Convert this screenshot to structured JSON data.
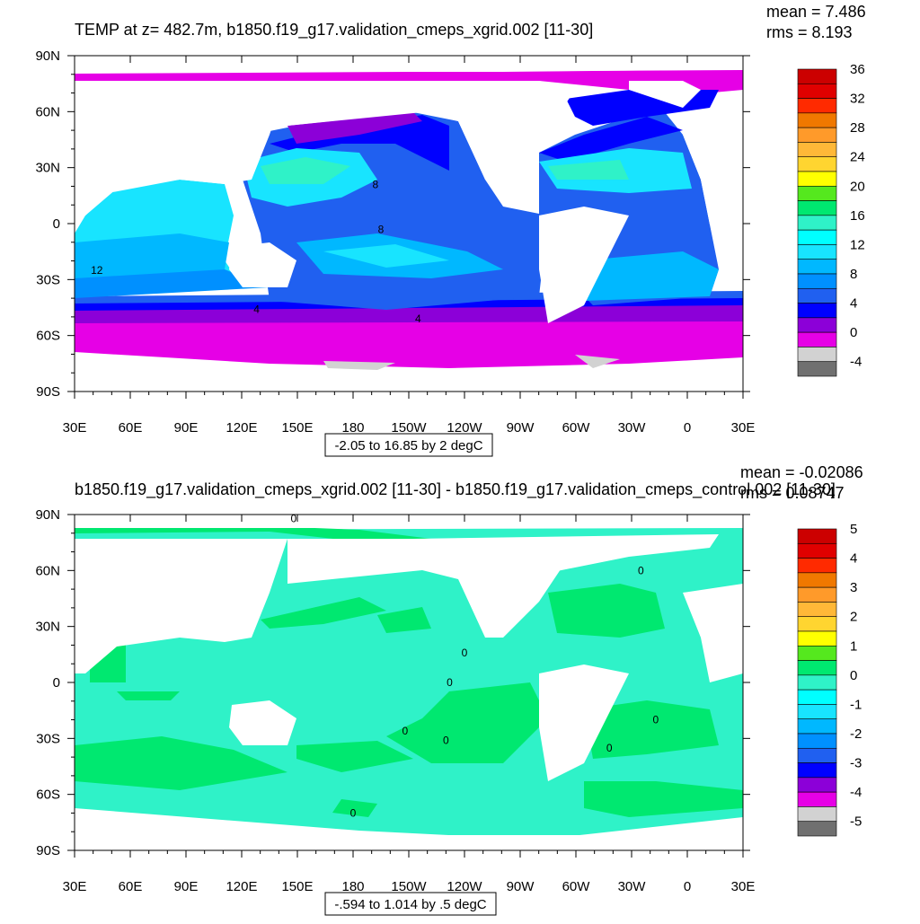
{
  "chart_data": [
    {
      "type": "heatmap",
      "title": "TEMP at z= 482.7m, b1850.f19_g17.validation_cmeps_xgrid.002 [11-30]",
      "stats": {
        "mean": "mean = 7.486",
        "rms": "rms = 8.193"
      },
      "x_ticks": [
        "30E",
        "60E",
        "90E",
        "120E",
        "150E",
        "180",
        "150W",
        "120W",
        "90W",
        "60W",
        "30W",
        "0",
        "30E"
      ],
      "y_ticks": [
        "90N",
        "60N",
        "30N",
        "0",
        "30S",
        "60S",
        "90S"
      ],
      "xlim_lon": [
        30,
        390
      ],
      "ylim_lat": [
        -90,
        90
      ],
      "colorbar": {
        "labels": [
          "36",
          "32",
          "28",
          "24",
          "20",
          "16",
          "12",
          "8",
          "4",
          "0",
          "-4"
        ],
        "colors": [
          "#cc0000",
          "#e00000",
          "#ff2a00",
          "#f07800",
          "#ff9a2a",
          "#ffb838",
          "#ffd530",
          "#ffff00",
          "#55e81e",
          "#00e870",
          "#2ff2c8",
          "#00ffff",
          "#18e4ff",
          "#00b8ff",
          "#0090ff",
          "#2060f0",
          "#0000ff",
          "#8c00d8",
          "#e600e6",
          "#d2d2d2",
          "#707070"
        ]
      },
      "range_label": "-2.05 to 16.85 by 2 degC",
      "contour_labels": [
        {
          "text": "8",
          "lon": 192,
          "lat": 19
        },
        {
          "text": "8",
          "lon": 195,
          "lat": -5
        },
        {
          "text": "12",
          "lon": 42,
          "lat": -27
        },
        {
          "text": "4",
          "lon": 128,
          "lat": -48
        },
        {
          "text": "4",
          "lon": 215,
          "lat": -53
        }
      ]
    },
    {
      "type": "heatmap",
      "title": "b1850.f19_g17.validation_cmeps_xgrid.002 [11-30] - b1850.f19_g17.validation_cmeps_control.002 [11-30]",
      "stats": {
        "mean": "mean = -0.02086",
        "rms": "rms = 0.08747"
      },
      "x_ticks": [
        "30E",
        "60E",
        "90E",
        "120E",
        "150E",
        "180",
        "150W",
        "120W",
        "90W",
        "60W",
        "30W",
        "0",
        "30E"
      ],
      "y_ticks": [
        "90N",
        "60N",
        "30N",
        "0",
        "30S",
        "60S",
        "90S"
      ],
      "xlim_lon": [
        30,
        390
      ],
      "ylim_lat": [
        -90,
        90
      ],
      "colorbar": {
        "labels": [
          "5",
          "4",
          "3",
          "2",
          "1",
          "0",
          "-1",
          "-2",
          "-3",
          "-4",
          "-5"
        ],
        "colors": [
          "#cc0000",
          "#e00000",
          "#ff2a00",
          "#f07800",
          "#ff9a2a",
          "#ffb838",
          "#ffd530",
          "#ffff00",
          "#55e81e",
          "#00e870",
          "#2ff2c8",
          "#00ffff",
          "#18e4ff",
          "#00b8ff",
          "#0090ff",
          "#2060f0",
          "#0000ff",
          "#8c00d8",
          "#e600e6",
          "#d2d2d2",
          "#707070"
        ]
      },
      "range_label": "-.594 to 1.014 by .5 degC",
      "contour_labels": [
        {
          "text": "0",
          "lon": 148,
          "lat": 86
        },
        {
          "text": "0",
          "lon": 240,
          "lat": 14
        },
        {
          "text": "0",
          "lon": 232,
          "lat": -2
        },
        {
          "text": "0",
          "lon": 208,
          "lat": -28
        },
        {
          "text": "0",
          "lon": 230,
          "lat": -33
        },
        {
          "text": "0",
          "lon": 318,
          "lat": -37
        },
        {
          "text": "0",
          "lon": 343,
          "lat": -22
        },
        {
          "text": "0",
          "lon": 180,
          "lat": -72
        },
        {
          "text": "0",
          "lon": 335,
          "lat": 58
        }
      ]
    }
  ],
  "colors": {
    "ocean_mid": "#2060f0",
    "ocean_warm": "#00b8ff",
    "ocean_cool": "#0000ff",
    "ocean_purple": "#8c00d8",
    "ocean_magenta": "#e600e6",
    "diff_cyan": "#2ff2c8",
    "diff_green": "#00e870",
    "land": "#ffffff"
  }
}
